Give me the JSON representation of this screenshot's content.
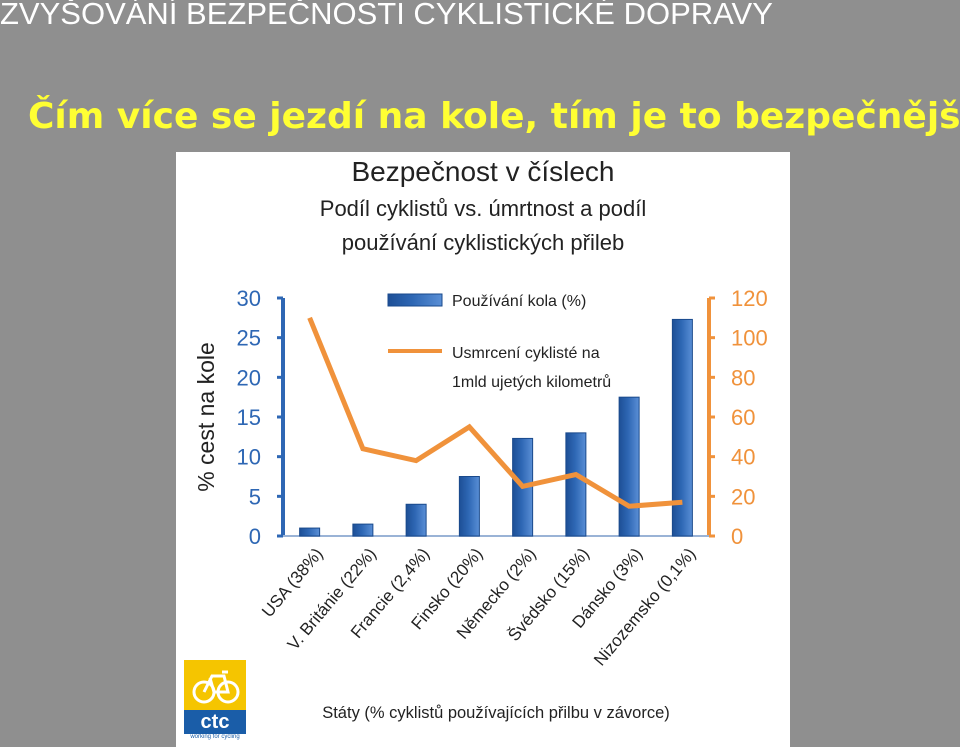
{
  "slide": {
    "title": "ZVYŠOVÁNÍ BEZPEČNOSTI CYKLISTICKÉ DOPRAVY",
    "subtitle": "Čím více se jezdí na kole, tím je to bezpečnější."
  },
  "logo": {
    "text": "ctc",
    "tagline": "working for cycling"
  },
  "colors": {
    "bar": "#2e67b4",
    "line": "#f0923b",
    "title": "#ffffff",
    "subtitle": "#ffff33"
  },
  "chart_data": {
    "type": "bar",
    "title": "Bezpečnost v číslech",
    "subtitle_line1": "Podíl cyklistů vs. úmrtnost a podíl",
    "subtitle_line2": "používání cyklistických přileb",
    "ylabel": "% cest na kole",
    "xlabel": "Státy (% cyklistů používajících přilbu v závorce)",
    "ylim": [
      0,
      30
    ],
    "yticks": [
      0,
      5,
      10,
      15,
      20,
      25,
      30
    ],
    "y2lim": [
      0,
      120
    ],
    "y2ticks": [
      0,
      20,
      40,
      60,
      80,
      100,
      120
    ],
    "categories": [
      "USA (38%)",
      "V. Británie (22%)",
      "Francie (2,4%)",
      "Finsko (20%)",
      "Německo (2%)",
      "Švédsko (15%)",
      "Dánsko (3%)",
      "Nizozemsko (0,1%)"
    ],
    "series": [
      {
        "name": "Používání kola (%)",
        "type": "bar",
        "axis": "left",
        "values": [
          1,
          1.5,
          4,
          7.5,
          12.3,
          13,
          17.5,
          27.3
        ]
      },
      {
        "name": "Usmrcení cyklisté na 1mld ujetých kilometrů",
        "name_line1": "Usmrcení cyklisté na",
        "name_line2": "1mld ujetých kilometrů",
        "type": "line",
        "axis": "right",
        "values": [
          110,
          44,
          38,
          55,
          25,
          31,
          15,
          17
        ]
      }
    ],
    "legend": "top-center",
    "grid": false
  }
}
